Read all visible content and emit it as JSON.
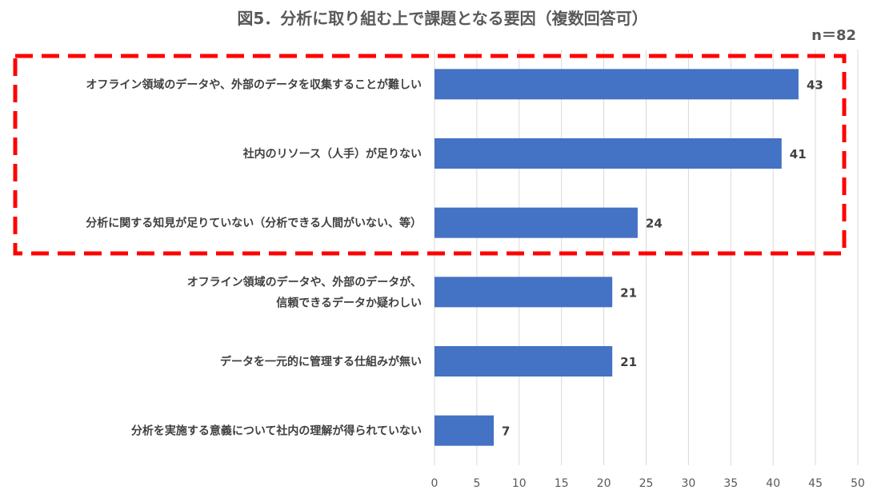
{
  "title": "図5．分析に取り組む上で課題となる要因（複数回答可）",
  "sample_size": "n＝82",
  "chart_data": {
    "type": "bar",
    "orientation": "horizontal",
    "categories": [
      [
        "オフライン領域のデータや、外部のデータを収集することが難しい"
      ],
      [
        "社内のリソース（人手）が足りない"
      ],
      [
        "分析に関する知見が足りていない（分析できる人間がいない、等）"
      ],
      [
        "オフライン領域のデータや、外部のデータが、",
        "信頼できるデータか疑わしい"
      ],
      [
        "データを一元的に管理する仕組みが無い"
      ],
      [
        "分析を実施する意義について社内の理解が得られていない"
      ]
    ],
    "values": [
      43,
      41,
      24,
      21,
      21,
      7
    ],
    "xlim": [
      0,
      50
    ],
    "xticks": [
      0,
      5,
      10,
      15,
      20,
      25,
      30,
      35,
      40,
      45,
      50
    ],
    "grid": true,
    "bar_color": "#4472c4",
    "highlight": {
      "categories_highlighted": [
        0,
        1,
        2
      ],
      "color": "#ff0000",
      "style": "dashed"
    }
  }
}
